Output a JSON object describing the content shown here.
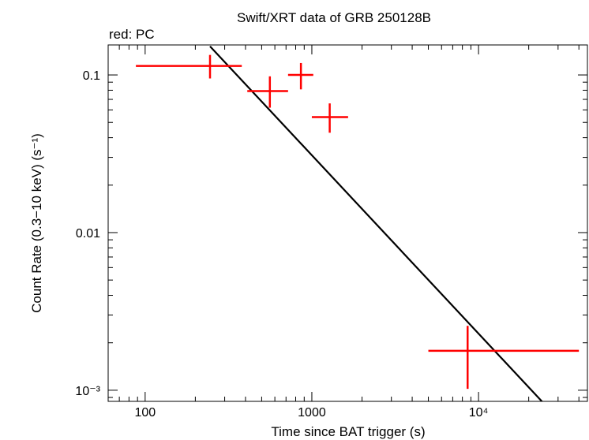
{
  "chart_data": {
    "type": "scatter",
    "title": "Swift/XRT data of GRB 250128B",
    "subtitle": "red: PC",
    "xlabel": "Time since BAT trigger (s)",
    "ylabel": "Count Rate (0.3−10 keV) (s⁻¹)",
    "xscale": "log",
    "yscale": "log",
    "xlim": [
      60,
      45000
    ],
    "ylim": [
      0.00085,
      0.155
    ],
    "x_ticks": [
      {
        "value": 100,
        "label": "100"
      },
      {
        "value": 1000,
        "label": "1000"
      },
      {
        "value": 10000,
        "label": "10⁴"
      }
    ],
    "y_ticks": [
      {
        "value": 0.1,
        "label": "0.1"
      },
      {
        "value": 0.01,
        "label": "0.01"
      },
      {
        "value": 0.001,
        "label": "10⁻³"
      }
    ],
    "series": [
      {
        "name": "PC",
        "color": "#ff0000",
        "points": [
          {
            "x": 245,
            "y": 0.114,
            "xmin": 88,
            "xmax": 380,
            "ymin": 0.095,
            "ymax": 0.134
          },
          {
            "x": 560,
            "y": 0.079,
            "xmin": 410,
            "xmax": 720,
            "ymin": 0.062,
            "ymax": 0.098
          },
          {
            "x": 860,
            "y": 0.1,
            "xmin": 720,
            "xmax": 1020,
            "ymin": 0.081,
            "ymax": 0.119
          },
          {
            "x": 1280,
            "y": 0.054,
            "xmin": 1000,
            "xmax": 1650,
            "ymin": 0.043,
            "ymax": 0.066
          },
          {
            "x": 8600,
            "y": 0.00178,
            "xmin": 5000,
            "xmax": 40000,
            "ymin": 0.00102,
            "ymax": 0.00256
          }
        ]
      }
    ],
    "model": {
      "name": "power-law fit",
      "color": "#000000",
      "x": [
        245,
        24500
      ],
      "y": [
        0.152,
        0.00083
      ]
    }
  }
}
